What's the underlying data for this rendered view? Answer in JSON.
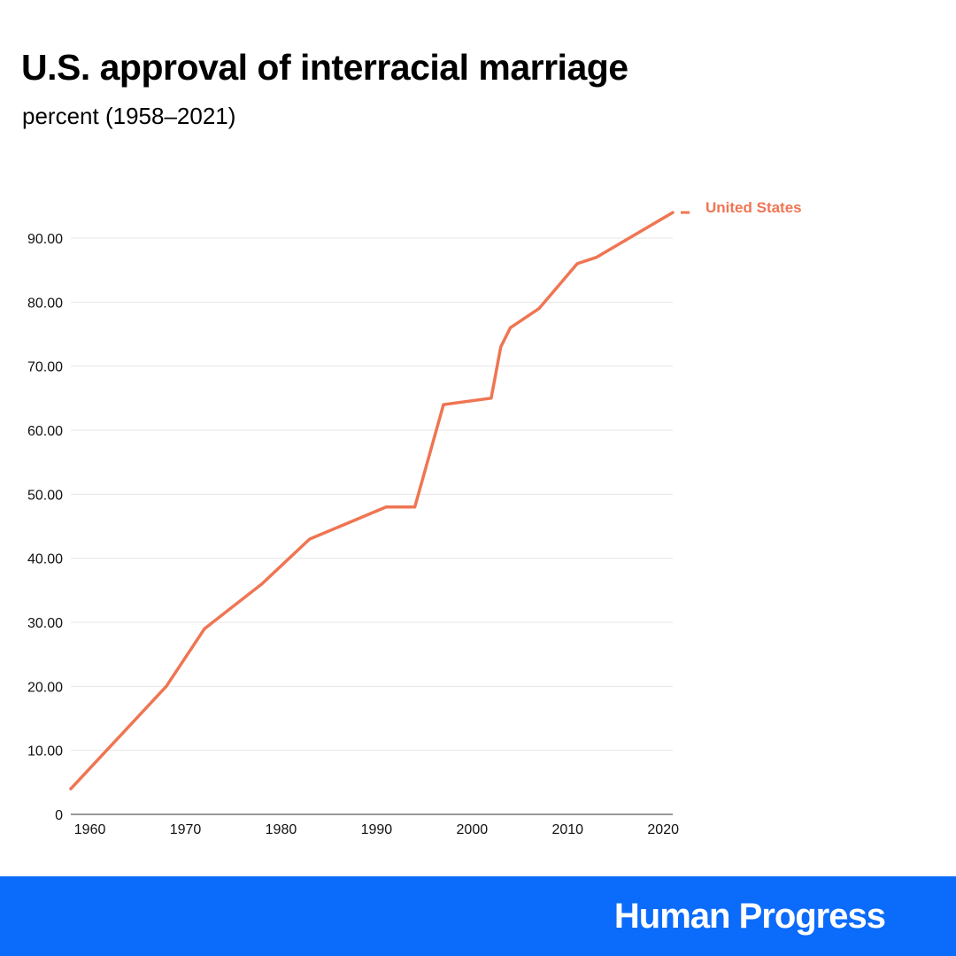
{
  "header": {
    "title": "U.S. approval of interracial marriage",
    "subtitle": "percent (1958–2021)"
  },
  "footer": {
    "brand": "Human Progress",
    "brand_icon": "double-arrow-up-right-icon",
    "background_color": "#0b6bfa"
  },
  "chart_data": {
    "type": "line",
    "title": "U.S. approval of interracial marriage",
    "subtitle": "percent (1958–2021)",
    "xlabel": "",
    "ylabel": "",
    "xlim": [
      1958,
      2021
    ],
    "ylim": [
      0,
      90
    ],
    "x_ticks": [
      1960,
      1970,
      1980,
      1990,
      2000,
      2010,
      2020
    ],
    "y_ticks": [
      0,
      10,
      20,
      30,
      40,
      50,
      60,
      70,
      80,
      90
    ],
    "y_tick_labels": [
      "0",
      "10.00",
      "20.00",
      "30.00",
      "40.00",
      "50.00",
      "60.00",
      "70.00",
      "80.00",
      "90.00"
    ],
    "grid": true,
    "legend": "end-of-line label",
    "series": [
      {
        "name": "United States",
        "color": "#ef7553",
        "x": [
          1958,
          1968,
          1972,
          1978,
          1983,
          1991,
          1994,
          1997,
          2002,
          2003,
          2004,
          2007,
          2011,
          2013,
          2021
        ],
        "values": [
          4,
          20,
          29,
          36,
          43,
          48,
          48,
          64,
          65,
          73,
          76,
          79,
          86,
          87,
          94
        ]
      }
    ]
  }
}
